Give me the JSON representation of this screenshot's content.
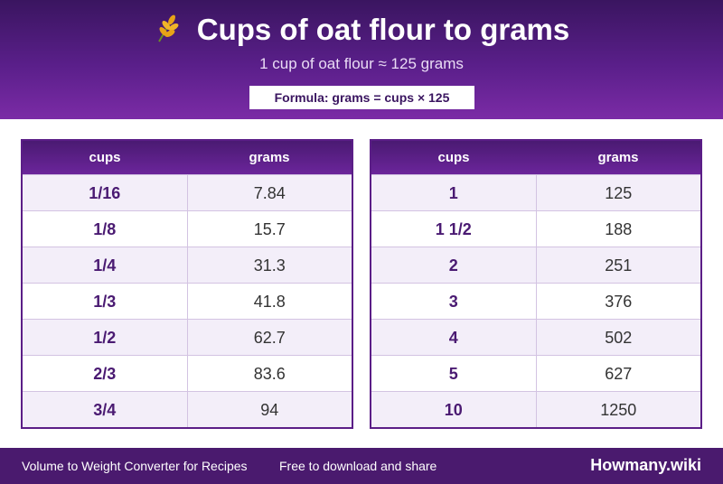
{
  "header": {
    "title": "Cups of oat flour to grams",
    "subtitle": "1 cup of oat flour ≈ 125 grams",
    "formula": "Formula: grams = cups × 125"
  },
  "tables": [
    {
      "columns": [
        "cups",
        "grams"
      ],
      "rows": [
        [
          "1/16",
          "7.84"
        ],
        [
          "1/8",
          "15.7"
        ],
        [
          "1/4",
          "31.3"
        ],
        [
          "1/3",
          "41.8"
        ],
        [
          "1/2",
          "62.7"
        ],
        [
          "2/3",
          "83.6"
        ],
        [
          "3/4",
          "94"
        ]
      ]
    },
    {
      "columns": [
        "cups",
        "grams"
      ],
      "rows": [
        [
          "1",
          "125"
        ],
        [
          "1 1/2",
          "188"
        ],
        [
          "2",
          "251"
        ],
        [
          "3",
          "376"
        ],
        [
          "4",
          "502"
        ],
        [
          "5",
          "627"
        ],
        [
          "10",
          "1250"
        ]
      ]
    }
  ],
  "footer": {
    "left": "Volume to Weight Converter for Recipes",
    "middle": "Free to download and share",
    "brand": "Howmany.wiki"
  }
}
